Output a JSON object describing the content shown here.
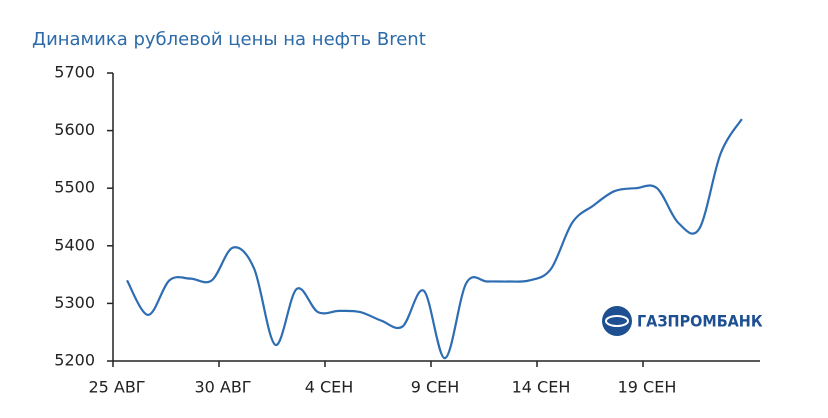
{
  "chart_data": {
    "type": "line",
    "title": "Динамика рублевой цены на нефть Brent",
    "categories": [
      "25 АВГ",
      null,
      null,
      null,
      null,
      "30 АВГ",
      null,
      null,
      null,
      null,
      "4 СЕН",
      null,
      null,
      null,
      null,
      "9 СЕН",
      null,
      null,
      null,
      null,
      "14 СЕН",
      null,
      null,
      null,
      null,
      "19 СЕН",
      null,
      null,
      null,
      null
    ],
    "series": [
      {
        "name": "Brent",
        "color": "#2f6db3",
        "values": [
          5340,
          5280,
          5340,
          5343,
          5340,
          5397,
          5360,
          5228,
          5325,
          5285,
          5287,
          5285,
          5270,
          5260,
          5322,
          5205,
          5335,
          5338,
          5338,
          5340,
          5360,
          5440,
          5470,
          5495,
          5500,
          5500,
          5440,
          5430,
          5560,
          5620
        ]
      }
    ],
    "ylim": [
      5200,
      5700
    ],
    "yticks": [
      5200,
      5300,
      5400,
      5500,
      5600,
      5700
    ],
    "logo": "ГАЗПРОМБАНК"
  }
}
